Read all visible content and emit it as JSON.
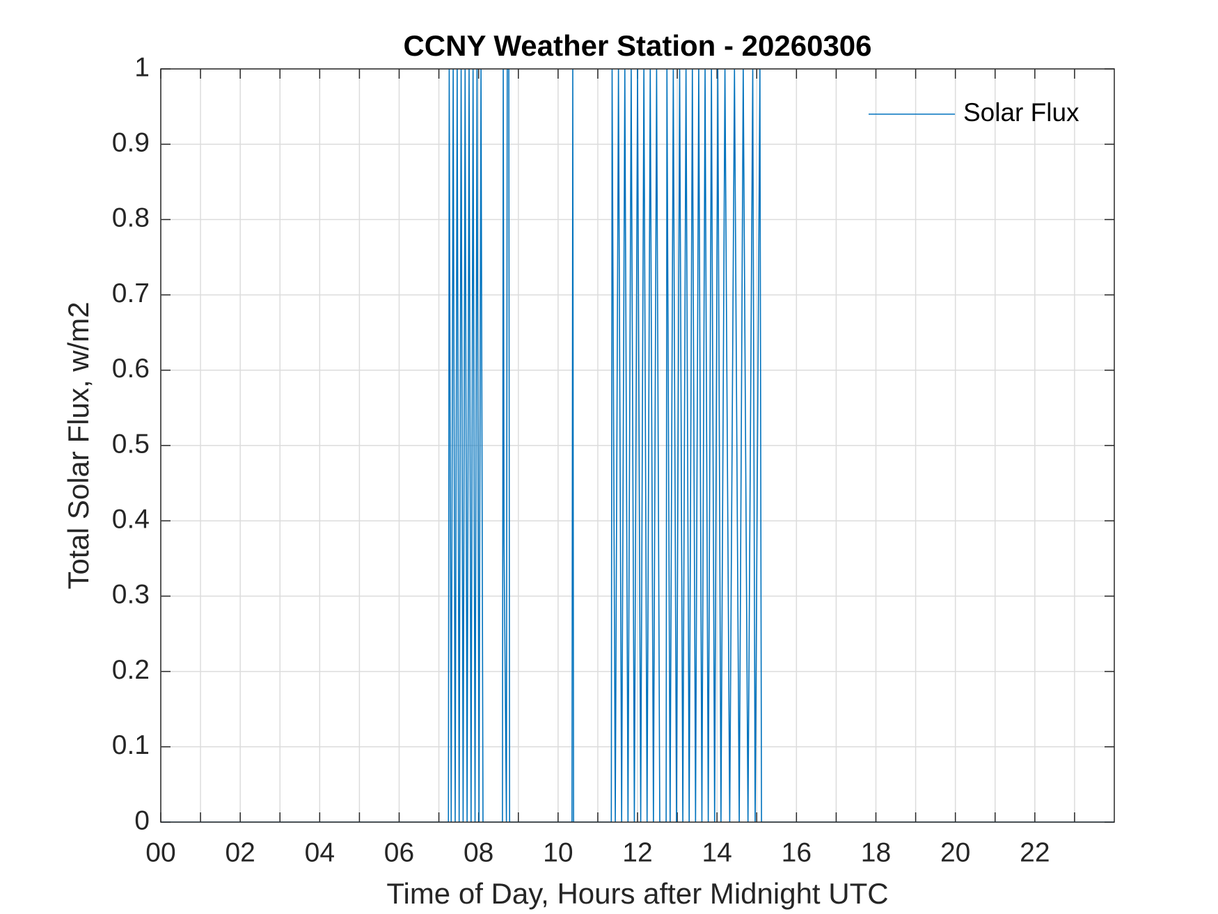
{
  "chart_data": {
    "type": "line",
    "title": "CCNY Weather Station - 20260306",
    "xlabel": "Time of Day, Hours after Midnight UTC",
    "ylabel": "Total Solar Flux, w/m2",
    "xlim": [
      0,
      24
    ],
    "ylim": [
      0,
      1
    ],
    "xticks": [
      {
        "value": 0,
        "label": "00"
      },
      {
        "value": 2,
        "label": "02"
      },
      {
        "value": 4,
        "label": "04"
      },
      {
        "value": 6,
        "label": "06"
      },
      {
        "value": 8,
        "label": "08"
      },
      {
        "value": 10,
        "label": "10"
      },
      {
        "value": 12,
        "label": "12"
      },
      {
        "value": 14,
        "label": "14"
      },
      {
        "value": 16,
        "label": "16"
      },
      {
        "value": 18,
        "label": "18"
      },
      {
        "value": 20,
        "label": "20"
      },
      {
        "value": 22,
        "label": "22"
      }
    ],
    "xminorticks": [
      1,
      3,
      5,
      7,
      9,
      11,
      13,
      15,
      17,
      19,
      21,
      23
    ],
    "yticks": [
      0,
      0.1,
      0.2,
      0.3,
      0.4,
      0.5,
      0.6,
      0.7,
      0.8,
      0.9,
      1
    ],
    "grid": true,
    "legend": "upper right",
    "series": [
      {
        "name": "Solar Flux",
        "color": "#0072bd",
        "x": [
          0,
          7.24,
          7.26,
          7.31,
          7.36,
          7.41,
          7.46,
          7.51,
          7.56,
          7.61,
          7.66,
          7.71,
          7.76,
          7.81,
          7.86,
          7.91,
          7.96,
          8.01,
          8.06,
          8.11,
          8.6,
          8.62,
          8.64,
          8.7,
          8.72,
          8.76,
          8.78,
          10.35,
          10.37,
          10.39,
          11.34,
          11.36,
          11.44,
          11.52,
          11.6,
          11.68,
          11.76,
          11.84,
          11.92,
          12.0,
          12.08,
          12.16,
          12.24,
          12.32,
          12.4,
          12.48,
          12.56,
          12.72,
          12.74,
          12.82,
          12.9,
          12.98,
          13.06,
          13.14,
          13.22,
          13.3,
          13.38,
          13.46,
          13.54,
          13.62,
          13.7,
          13.78,
          13.86,
          13.94,
          14.02,
          14.1,
          14.2,
          14.32,
          14.44,
          14.56,
          14.66,
          14.78,
          14.9,
          14.96,
          15.08,
          15.12,
          24
        ],
        "values": [
          0,
          0,
          1,
          0,
          1,
          0,
          1,
          0,
          1,
          0,
          1,
          0,
          1,
          0,
          1,
          0,
          1,
          0,
          1,
          0,
          0,
          1,
          0.37,
          0,
          1,
          1,
          0,
          0,
          1,
          0,
          0,
          1,
          0,
          1,
          0,
          1,
          0,
          1,
          0,
          1,
          0,
          1,
          0,
          1,
          0,
          1,
          0,
          0,
          1,
          0,
          1,
          0,
          1,
          0,
          1,
          0,
          1,
          0,
          1,
          0,
          1,
          0,
          1,
          0,
          1,
          0,
          1,
          0,
          1,
          0,
          1,
          0,
          1,
          0,
          1,
          0,
          0
        ]
      }
    ]
  }
}
